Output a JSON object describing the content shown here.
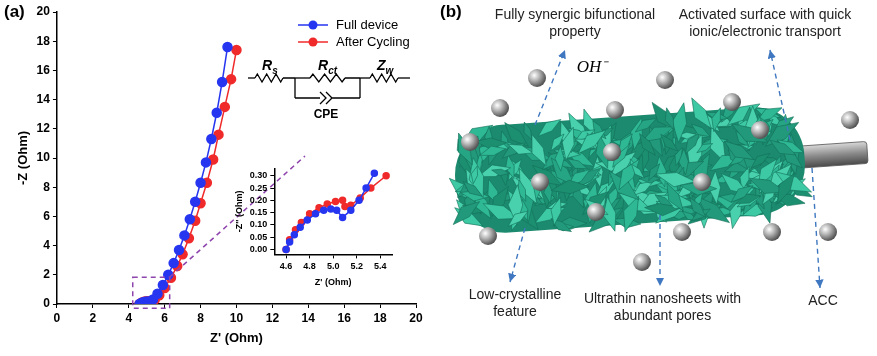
{
  "panel_labels": {
    "a": "(a)",
    "b": "(b)"
  },
  "chart_data": [
    {
      "type": "line",
      "x_label": "Z' (Ohm)",
      "y_label": "-Z (Ohm)",
      "xlim": [
        0,
        20
      ],
      "xticks": [
        0,
        2,
        4,
        6,
        8,
        10,
        12,
        14,
        16,
        18,
        20
      ],
      "ylim": [
        0,
        20
      ],
      "yticks": [
        0,
        2,
        4,
        6,
        8,
        10,
        12,
        14,
        16,
        18,
        20
      ],
      "grid": false,
      "legend": "upper right",
      "series": [
        {
          "name": "Full device",
          "color": "#2636f0",
          "marker": "circle",
          "x": [
            4.6,
            4.72,
            4.85,
            4.98,
            5.08,
            5.2,
            5.35,
            5.6,
            5.9,
            6.2,
            6.5,
            6.8,
            7.1,
            7.4,
            7.7,
            8.0,
            8.3,
            8.6,
            8.9,
            9.2,
            9.5
          ],
          "values": [
            0,
            0.09,
            0.145,
            0.165,
            0.13,
            0.19,
            0.31,
            0.7,
            1.3,
            2.0,
            2.8,
            3.7,
            4.7,
            5.8,
            7.0,
            8.3,
            9.7,
            11.3,
            13.1,
            15.2,
            17.6
          ]
        },
        {
          "name": "After Cycling",
          "color": "#f02a2a",
          "marker": "circle",
          "x": [
            4.6,
            4.73,
            4.88,
            5.02,
            5.1,
            5.23,
            5.45,
            5.7,
            6.0,
            6.35,
            6.7,
            7.0,
            7.35,
            7.7,
            8.0,
            8.35,
            8.7,
            9.0,
            9.35,
            9.7,
            10.0
          ],
          "values": [
            0,
            0.11,
            0.17,
            0.195,
            0.175,
            0.21,
            0.3,
            0.6,
            1.1,
            1.8,
            2.6,
            3.4,
            4.5,
            5.7,
            6.9,
            8.3,
            9.9,
            11.6,
            13.5,
            15.4,
            17.4
          ]
        }
      ]
    },
    {
      "type": "line",
      "x_label": "Z' (Ohm)",
      "y_label": "-Z'' (Ohm)",
      "xlim": [
        4.5,
        5.5
      ],
      "xticks": [
        4.6,
        4.8,
        {
          "value": 5,
          "label": "5.0"
        },
        5.2,
        5.4
      ],
      "ylim": [
        -0.02,
        0.33
      ],
      "yticks": [
        {
          "value": 0,
          "label": "0.00"
        },
        {
          "value": 0.05,
          "label": "0.05"
        },
        {
          "value": 0.1,
          "label": "0.10"
        },
        {
          "value": 0.15,
          "label": "0.15"
        },
        {
          "value": 0.2,
          "label": "0.20"
        },
        {
          "value": 0.25,
          "label": "0.25"
        },
        {
          "value": 0.3,
          "label": "0.30"
        }
      ],
      "grid": false,
      "series": [
        {
          "color": "#2636f0",
          "marker": "circle",
          "x": [
            4.6,
            4.63,
            4.67,
            4.72,
            4.78,
            4.85,
            4.92,
            4.98,
            5.03,
            5.08,
            5.15,
            5.22,
            5.28,
            5.35
          ],
          "values": [
            0,
            0.03,
            0.06,
            0.09,
            0.12,
            0.145,
            0.16,
            0.165,
            0.16,
            0.13,
            0.16,
            0.2,
            0.25,
            0.31
          ]
        },
        {
          "color": "#f02a2a",
          "marker": "circle",
          "x": [
            4.6,
            4.63,
            4.68,
            4.73,
            4.8,
            4.88,
            4.95,
            5.02,
            5.08,
            5.1,
            5.15,
            5.23,
            5.32,
            5.45
          ],
          "values": [
            0,
            0.04,
            0.08,
            0.11,
            0.145,
            0.17,
            0.185,
            0.195,
            0.2,
            0.175,
            0.18,
            0.21,
            0.25,
            0.3
          ]
        }
      ]
    }
  ],
  "circuit": {
    "elements": [
      {
        "symbol": "R",
        "subscript": "s"
      },
      {
        "symbol": "R",
        "subscript": "ct"
      },
      {
        "symbol": "Z",
        "subscript": "w"
      }
    ],
    "cpe": "CPE"
  },
  "diagram": {
    "callouts": {
      "synergic": "Fully synergic bifunctional property",
      "surface": "Activated surface with quick ionic/electronic transport",
      "ion": "OH⁻",
      "crystal": "Low-crystalline feature",
      "sheets": "Ultrathin nanosheets with abundant pores",
      "substrate": "ACC"
    }
  }
}
